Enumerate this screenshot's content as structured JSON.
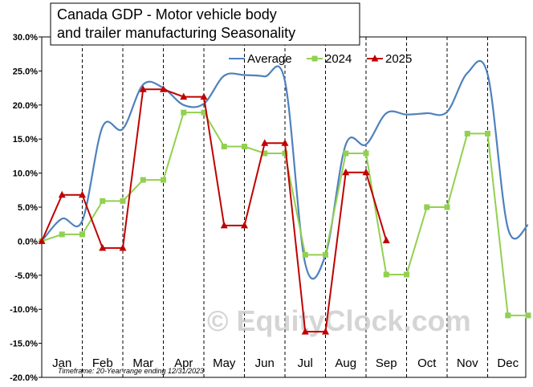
{
  "chart_data": {
    "type": "line",
    "title_lines": [
      "Canada  GDP - Motor vehicle body",
      "and trailer manufacturing  Seasonality"
    ],
    "categories": [
      "Jan",
      "Feb",
      "Mar",
      "Apr",
      "May",
      "Jun",
      "Jul",
      "Aug",
      "Sep",
      "Oct",
      "Nov",
      "Dec"
    ],
    "ylim": [
      -20,
      30
    ],
    "yticks": [
      "30.0%",
      "25.0%",
      "20.0%",
      "15.0%",
      "10.0%",
      "5.0%",
      "0.0%",
      "-5.0%",
      "-10.0%",
      "-15.0%",
      "-20.0%"
    ],
    "ytick_values": [
      30,
      25,
      20,
      15,
      10,
      5,
      0,
      -5,
      -10,
      -15,
      -20
    ],
    "series": [
      {
        "name": "Average",
        "color": "#4f81bd",
        "marker": "none",
        "x": [
          0,
          0.5,
          1,
          1.5,
          2,
          2.5,
          3,
          3.5,
          4,
          4.5,
          5,
          5.5,
          6,
          6.5,
          7,
          7.5,
          8,
          8.5,
          9,
          9.5,
          10,
          10.5,
          11,
          11.5,
          12
        ],
        "values": [
          0,
          3.3,
          3.0,
          16.8,
          16.5,
          23.0,
          22.5,
          20.0,
          20.2,
          24.3,
          24.4,
          24.2,
          23.5,
          -3.3,
          -2.0,
          14.2,
          14.2,
          18.8,
          18.6,
          18.8,
          19.0,
          24.7,
          24.5,
          1.9,
          2.4
        ]
      },
      {
        "name": "2024",
        "color": "#92d050",
        "marker": "square",
        "x": [
          0,
          0.5,
          1,
          1.5,
          2,
          2.5,
          3,
          3.5,
          4,
          4.5,
          5,
          5.5,
          6,
          6.5,
          7,
          7.5,
          8,
          8.5,
          9,
          9.5,
          10,
          10.5,
          11,
          11.5,
          12
        ],
        "values": [
          0,
          1.0,
          1.0,
          5.9,
          5.9,
          9.0,
          9.0,
          18.9,
          18.9,
          13.9,
          13.9,
          12.9,
          12.9,
          -2.0,
          -2.0,
          12.9,
          12.9,
          -4.9,
          -4.9,
          5.0,
          5.0,
          15.8,
          15.8,
          -10.9,
          -10.9
        ]
      },
      {
        "name": "2025",
        "color": "#c00000",
        "marker": "triangle",
        "x": [
          0,
          0.5,
          1,
          1.5,
          2,
          2.5,
          3,
          3.5,
          4,
          4.5,
          5,
          5.5,
          6,
          6.5,
          7,
          7.5,
          8,
          8.5
        ],
        "values": [
          0,
          6.8,
          6.8,
          -1.0,
          -1.0,
          22.3,
          22.3,
          21.2,
          21.2,
          2.3,
          2.3,
          14.4,
          14.4,
          -13.3,
          -13.3,
          10.1,
          10.1,
          0.1
        ]
      }
    ],
    "legend": [
      "Average",
      "2024",
      "2025"
    ],
    "footnote": "Timeframe: 20-Year range ending 12/31/2023",
    "watermark": "© EquityClock.com"
  }
}
